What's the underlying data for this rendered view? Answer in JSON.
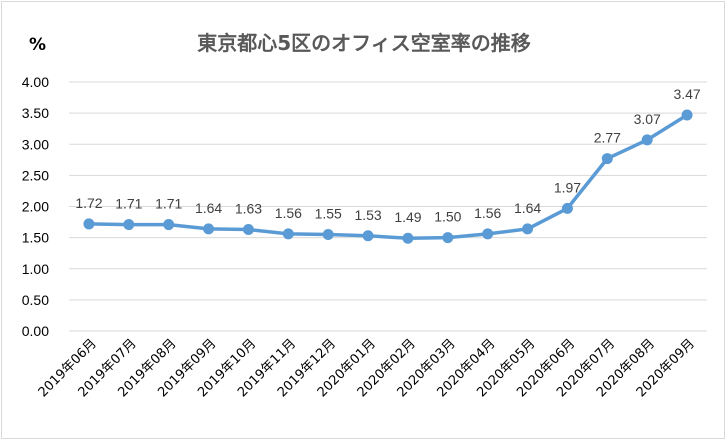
{
  "chart_data": {
    "type": "line",
    "title": "東京都心5区のオフィス空室率の推移",
    "unit_label": "%",
    "xlabel": "",
    "ylabel": "",
    "ylim": [
      0,
      4
    ],
    "ytick_step": 0.5,
    "yticks": [
      "0.00",
      "0.50",
      "1.00",
      "1.50",
      "2.00",
      "2.50",
      "3.00",
      "3.50",
      "4.00"
    ],
    "grid": true,
    "legend": "none",
    "color": "#5b9bd5",
    "categories": [
      "2019年06月",
      "2019年07月",
      "2019年08月",
      "2019年09月",
      "2019年10月",
      "2019年11月",
      "2019年12月",
      "2020年01月",
      "2020年02月",
      "2020年03月",
      "2020年04月",
      "2020年05月",
      "2020年06月",
      "2020年07月",
      "2020年08月",
      "2020年09月"
    ],
    "series": [
      {
        "values": [
          1.72,
          1.71,
          1.71,
          1.64,
          1.63,
          1.56,
          1.55,
          1.53,
          1.49,
          1.5,
          1.56,
          1.64,
          1.97,
          2.77,
          3.07,
          3.47
        ],
        "labels": [
          "1.72",
          "1.71",
          "1.71",
          "1.64",
          "1.63",
          "1.56",
          "1.55",
          "1.53",
          "1.49",
          "1.50",
          "1.56",
          "1.64",
          "1.97",
          "2.77",
          "3.07",
          "3.47"
        ]
      }
    ]
  }
}
